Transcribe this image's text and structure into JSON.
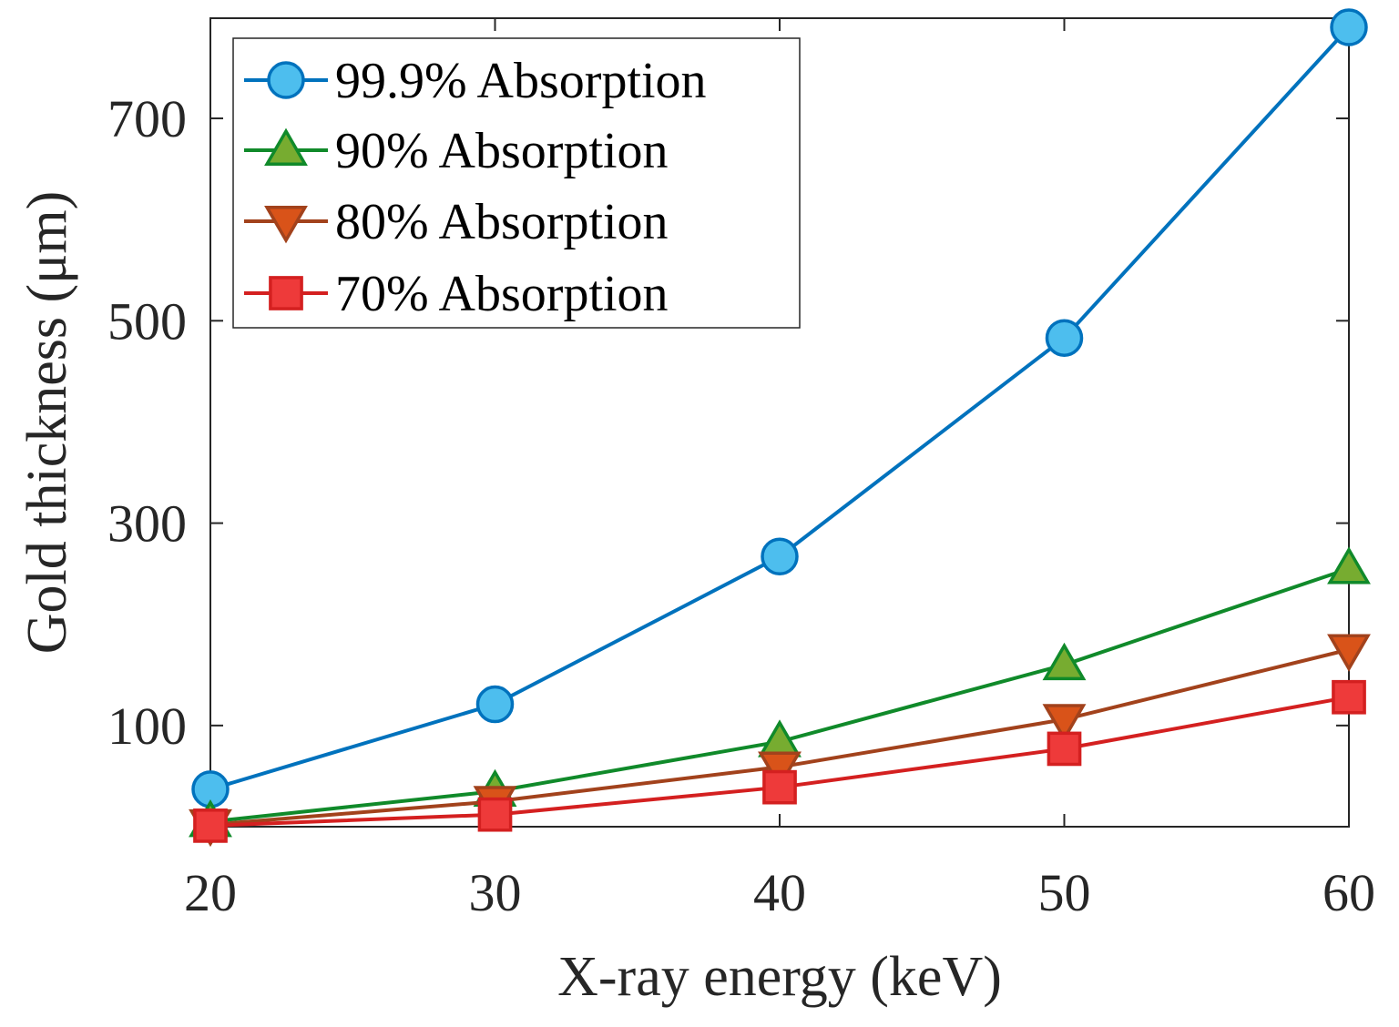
{
  "chart_data": {
    "type": "line",
    "title": "",
    "xlabel": "X-ray energy (keV)",
    "ylabel": "Gold thickness (μm)",
    "x": [
      20,
      30,
      40,
      50,
      60
    ],
    "xlim": [
      20,
      60
    ],
    "ylim": [
      0,
      800
    ],
    "xticks": [
      20,
      30,
      40,
      50,
      60
    ],
    "yticks": [
      100,
      300,
      500,
      700
    ],
    "grid": false,
    "legend_position": "top-left",
    "series": [
      {
        "name": "99.9% Absorption",
        "values": [
          37,
          121,
          267,
          483,
          790
        ],
        "color": "#0072BD",
        "marker": "circle",
        "marker_fill": "#4DBEEE"
      },
      {
        "name": "90% Absorption",
        "values": [
          5,
          35,
          84,
          160,
          255
        ],
        "color": "#108A2A",
        "marker": "triangle-up",
        "marker_fill": "#77AC30"
      },
      {
        "name": "80% Absorption",
        "values": [
          2,
          25,
          59,
          106,
          175
        ],
        "color": "#A2421C",
        "marker": "triangle-down",
        "marker_fill": "#D95319"
      },
      {
        "name": "70% Absorption",
        "values": [
          1,
          12,
          39,
          77,
          128
        ],
        "color": "#D42020",
        "marker": "square",
        "marker_fill": "#EE3A3A"
      }
    ]
  }
}
